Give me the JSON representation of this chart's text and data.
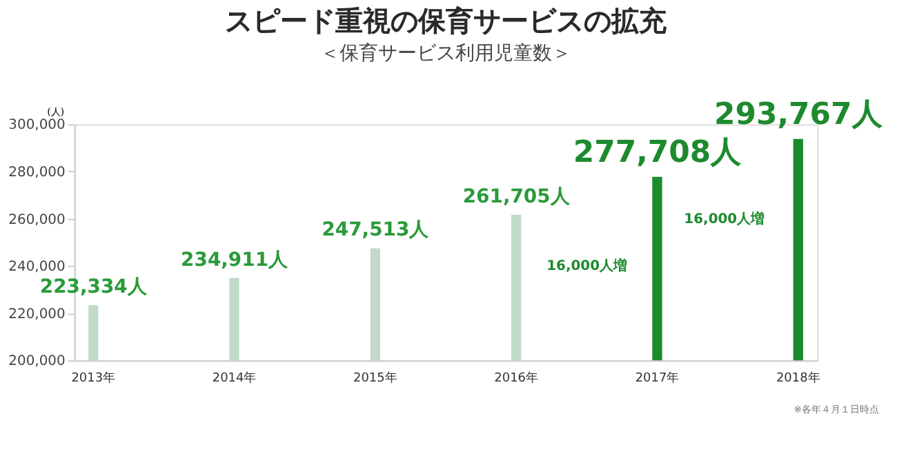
{
  "chart_data": {
    "type": "bar",
    "title": "スピード重視の保育サービスの拡充",
    "subtitle": "＜保育サービス利用児童数＞",
    "ylabel": "(人)",
    "categories": [
      "2013年",
      "2014年",
      "2015年",
      "2016年",
      "2017年",
      "2018年"
    ],
    "values": [
      223334,
      234911,
      247513,
      261705,
      277708,
      293767
    ],
    "colors": [
      "#c2d9c9",
      "#c2d9c9",
      "#c2d9c9",
      "#c2d9c9",
      "#1e8a2e",
      "#1e8a2e"
    ],
    "value_labels": [
      "223,334人",
      "234,911人",
      "247,513人",
      "261,705人",
      "277,708人",
      "293,767人"
    ],
    "ylim": [
      200000,
      300000
    ],
    "yticks": [
      {
        "value": 200000,
        "label": "200,000"
      },
      {
        "value": 220000,
        "label": "220,000"
      },
      {
        "value": 240000,
        "label": "240,000"
      },
      {
        "value": 260000,
        "label": "260,000"
      },
      {
        "value": 280000,
        "label": "280,000"
      },
      {
        "value": 300000,
        "label": "300,000"
      }
    ],
    "grid": false,
    "annotations": [
      "16,000人増",
      "16,000人増",
      "※各年４月１日時点"
    ]
  }
}
